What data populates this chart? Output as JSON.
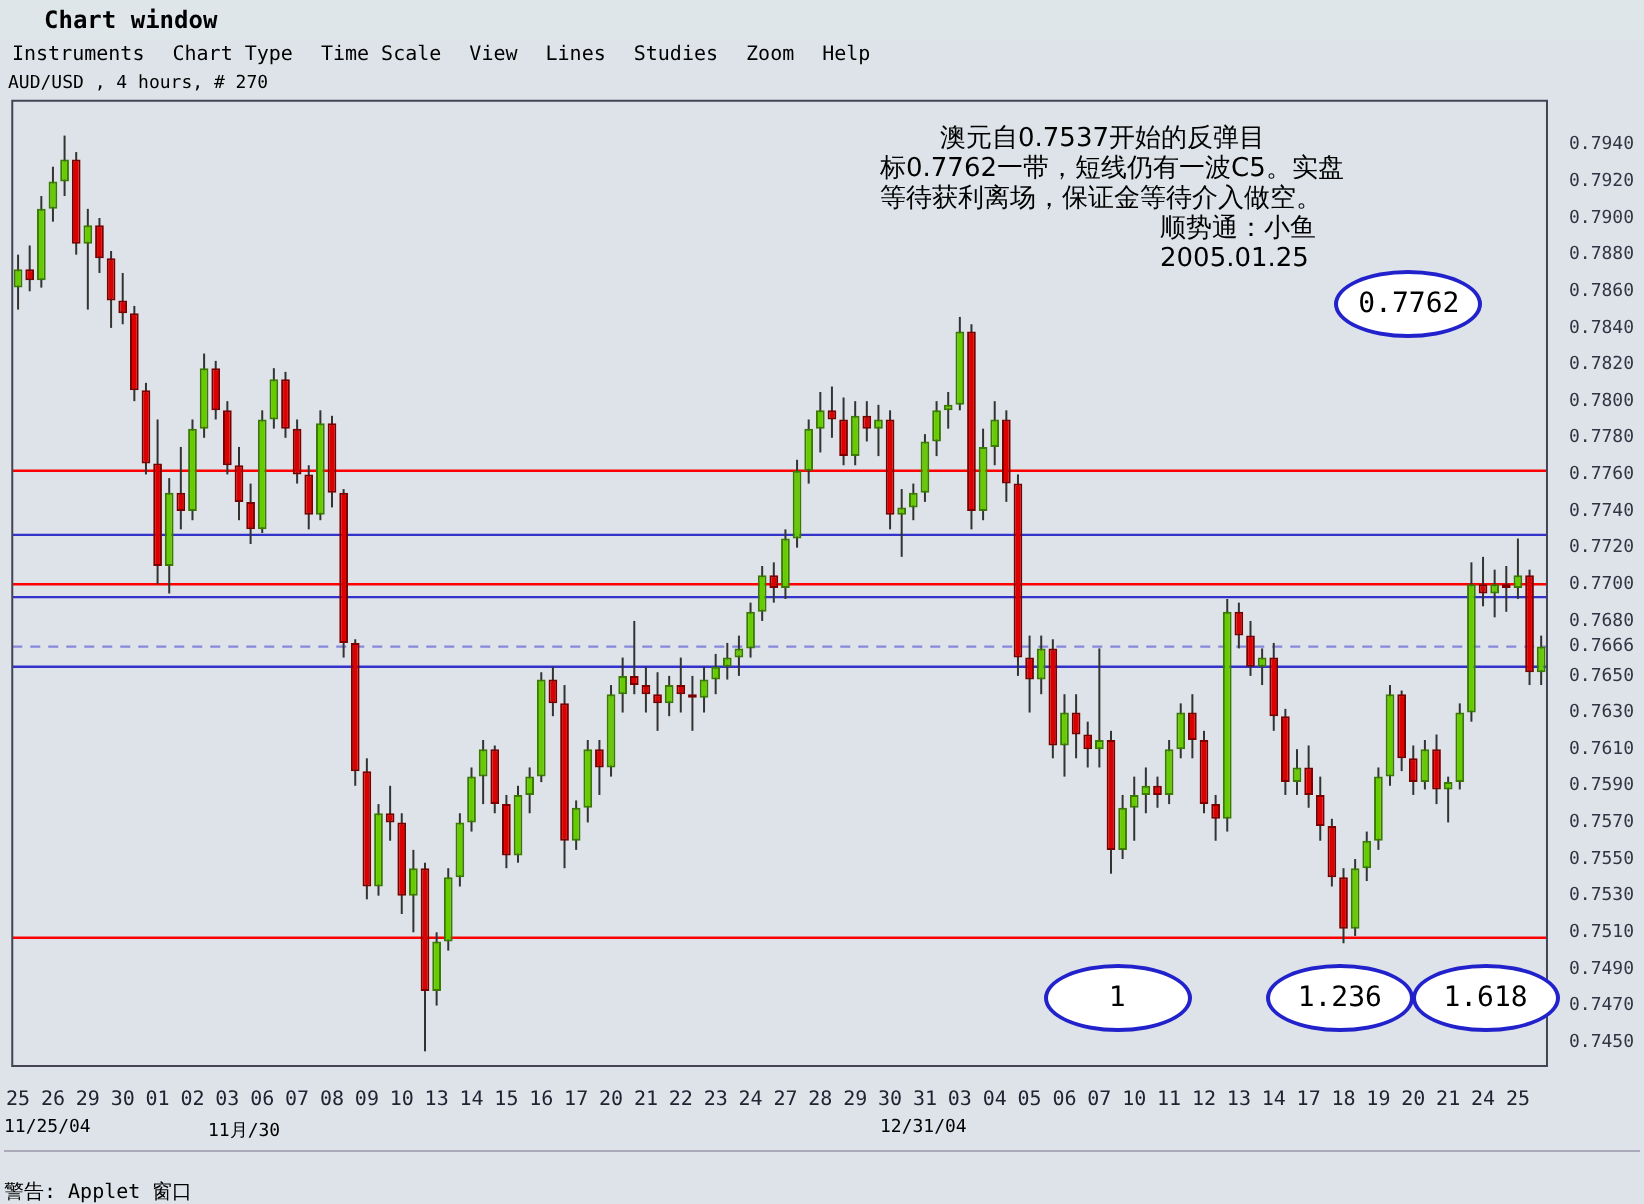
{
  "chart_data": {
    "type": "candlestick",
    "title": "Chart window",
    "subtitle": "AUD/USD , 4 hours, # 270",
    "categories": [
      "25",
      null,
      null,
      "26",
      null,
      null,
      "29",
      null,
      null,
      "30",
      null,
      null,
      "01",
      null,
      null,
      "02",
      null,
      null,
      "03",
      null,
      null,
      "06",
      null,
      null,
      "07",
      null,
      null,
      "08",
      null,
      null,
      "09",
      null,
      null,
      "10",
      null,
      null,
      "13",
      null,
      null,
      "14",
      null,
      null,
      "15",
      null,
      null,
      "16",
      null,
      null,
      "17",
      null,
      null,
      "20",
      null,
      null,
      "21",
      null,
      null,
      "22",
      null,
      null,
      "23",
      null,
      null,
      "24",
      null,
      null,
      "27",
      null,
      null,
      "28",
      null,
      null,
      "29",
      null,
      null,
      "30",
      null,
      null,
      "31",
      null,
      null,
      "03",
      null,
      null,
      "04",
      null,
      null,
      "05",
      null,
      null,
      "06",
      null,
      null,
      "07",
      null,
      null,
      "10",
      null,
      null,
      "11",
      null,
      null,
      "12",
      null,
      null,
      "13",
      null,
      null,
      "14",
      null,
      null,
      "17",
      null,
      null,
      "18",
      null,
      null,
      "19",
      null,
      null,
      "20",
      null,
      null,
      "21",
      null,
      null,
      "24",
      null,
      null,
      "25",
      null,
      null
    ],
    "ohlc": [
      [
        0.7862,
        0.788,
        0.785,
        0.7872
      ],
      [
        0.7872,
        0.7885,
        0.786,
        0.7866
      ],
      [
        0.7866,
        0.7912,
        0.7862,
        0.7905
      ],
      [
        0.7905,
        0.7928,
        0.7898,
        0.792
      ],
      [
        0.792,
        0.7945,
        0.7912,
        0.7932
      ],
      [
        0.7932,
        0.7936,
        0.788,
        0.7886
      ],
      [
        0.7886,
        0.7905,
        0.785,
        0.7896
      ],
      [
        0.7896,
        0.79,
        0.787,
        0.7878
      ],
      [
        0.7878,
        0.7882,
        0.784,
        0.7855
      ],
      [
        0.7855,
        0.787,
        0.7842,
        0.7848
      ],
      [
        0.7848,
        0.7852,
        0.78,
        0.7806
      ],
      [
        0.7806,
        0.781,
        0.776,
        0.7766
      ],
      [
        0.7766,
        0.779,
        0.77,
        0.771
      ],
      [
        0.771,
        0.7758,
        0.7695,
        0.775
      ],
      [
        0.775,
        0.7775,
        0.773,
        0.774
      ],
      [
        0.774,
        0.779,
        0.7735,
        0.7785
      ],
      [
        0.7785,
        0.7826,
        0.778,
        0.7818
      ],
      [
        0.7818,
        0.7822,
        0.779,
        0.7795
      ],
      [
        0.7795,
        0.78,
        0.776,
        0.7765
      ],
      [
        0.7765,
        0.7775,
        0.7735,
        0.7745
      ],
      [
        0.7745,
        0.7755,
        0.7722,
        0.773
      ],
      [
        0.773,
        0.7795,
        0.7728,
        0.779
      ],
      [
        0.779,
        0.7818,
        0.7785,
        0.7812
      ],
      [
        0.7812,
        0.7816,
        0.778,
        0.7785
      ],
      [
        0.7785,
        0.779,
        0.7755,
        0.776
      ],
      [
        0.776,
        0.7765,
        0.773,
        0.7738
      ],
      [
        0.7738,
        0.7795,
        0.7735,
        0.7788
      ],
      [
        0.7788,
        0.7792,
        0.7742,
        0.775
      ],
      [
        0.775,
        0.7752,
        0.766,
        0.7668
      ],
      [
        0.7668,
        0.767,
        0.759,
        0.7598
      ],
      [
        0.7598,
        0.7605,
        0.7528,
        0.7535
      ],
      [
        0.7535,
        0.758,
        0.753,
        0.7575
      ],
      [
        0.7575,
        0.759,
        0.756,
        0.757
      ],
      [
        0.757,
        0.7575,
        0.752,
        0.753
      ],
      [
        0.753,
        0.7555,
        0.751,
        0.7545
      ],
      [
        0.7545,
        0.7548,
        0.7445,
        0.7478
      ],
      [
        0.7478,
        0.751,
        0.747,
        0.7505
      ],
      [
        0.7505,
        0.7545,
        0.75,
        0.754
      ],
      [
        0.754,
        0.7575,
        0.7535,
        0.757
      ],
      [
        0.757,
        0.76,
        0.7565,
        0.7595
      ],
      [
        0.7595,
        0.7615,
        0.758,
        0.761
      ],
      [
        0.761,
        0.7612,
        0.7575,
        0.758
      ],
      [
        0.758,
        0.7585,
        0.7545,
        0.7552
      ],
      [
        0.7552,
        0.759,
        0.7548,
        0.7585
      ],
      [
        0.7585,
        0.76,
        0.7575,
        0.7595
      ],
      [
        0.7595,
        0.7652,
        0.7592,
        0.7648
      ],
      [
        0.7648,
        0.7655,
        0.7628,
        0.7635
      ],
      [
        0.7635,
        0.7645,
        0.7545,
        0.756
      ],
      [
        0.756,
        0.7582,
        0.7555,
        0.7578
      ],
      [
        0.7578,
        0.7615,
        0.757,
        0.761
      ],
      [
        0.761,
        0.7615,
        0.7585,
        0.76
      ],
      [
        0.76,
        0.7645,
        0.7595,
        0.764
      ],
      [
        0.764,
        0.766,
        0.763,
        0.765
      ],
      [
        0.765,
        0.768,
        0.764,
        0.7645
      ],
      [
        0.7645,
        0.7655,
        0.763,
        0.764
      ],
      [
        0.764,
        0.7652,
        0.762,
        0.7635
      ],
      [
        0.7635,
        0.765,
        0.7628,
        0.7645
      ],
      [
        0.7645,
        0.766,
        0.763,
        0.764
      ],
      [
        0.764,
        0.765,
        0.762,
        0.7638
      ],
      [
        0.7638,
        0.7655,
        0.763,
        0.7648
      ],
      [
        0.7648,
        0.7662,
        0.764,
        0.7655
      ],
      [
        0.7655,
        0.7668,
        0.7648,
        0.766
      ],
      [
        0.766,
        0.7672,
        0.765,
        0.7665
      ],
      [
        0.7665,
        0.769,
        0.766,
        0.7685
      ],
      [
        0.7685,
        0.771,
        0.768,
        0.7705
      ],
      [
        0.7705,
        0.7712,
        0.769,
        0.7698
      ],
      [
        0.7698,
        0.773,
        0.7692,
        0.7725
      ],
      [
        0.7725,
        0.7768,
        0.772,
        0.7762
      ],
      [
        0.7762,
        0.779,
        0.7755,
        0.7785
      ],
      [
        0.7785,
        0.7805,
        0.7772,
        0.7795
      ],
      [
        0.7795,
        0.7808,
        0.778,
        0.779
      ],
      [
        0.779,
        0.7802,
        0.7765,
        0.777
      ],
      [
        0.777,
        0.78,
        0.7765,
        0.7792
      ],
      [
        0.7792,
        0.78,
        0.7778,
        0.7785
      ],
      [
        0.7785,
        0.7798,
        0.777,
        0.779
      ],
      [
        0.779,
        0.7795,
        0.773,
        0.7738
      ],
      [
        0.7738,
        0.7752,
        0.7715,
        0.7742
      ],
      [
        0.7742,
        0.7755,
        0.7735,
        0.775
      ],
      [
        0.775,
        0.7782,
        0.7745,
        0.7778
      ],
      [
        0.7778,
        0.78,
        0.777,
        0.7795
      ],
      [
        0.7795,
        0.7805,
        0.7785,
        0.7798
      ],
      [
        0.7798,
        0.7846,
        0.7795,
        0.7838
      ],
      [
        0.7838,
        0.7842,
        0.773,
        0.774
      ],
      [
        0.774,
        0.7785,
        0.7735,
        0.7775
      ],
      [
        0.7775,
        0.78,
        0.7765,
        0.779
      ],
      [
        0.779,
        0.7795,
        0.7745,
        0.7755
      ],
      [
        0.7755,
        0.776,
        0.765,
        0.766
      ],
      [
        0.766,
        0.7672,
        0.763,
        0.7648
      ],
      [
        0.7648,
        0.7672,
        0.764,
        0.7665
      ],
      [
        0.7665,
        0.767,
        0.7605,
        0.7612
      ],
      [
        0.7612,
        0.764,
        0.7595,
        0.763
      ],
      [
        0.763,
        0.764,
        0.7605,
        0.7618
      ],
      [
        0.7618,
        0.7625,
        0.76,
        0.761
      ],
      [
        0.761,
        0.7665,
        0.76,
        0.7615
      ],
      [
        0.7615,
        0.762,
        0.7542,
        0.7555
      ],
      [
        0.7555,
        0.7585,
        0.755,
        0.7578
      ],
      [
        0.7578,
        0.7595,
        0.756,
        0.7585
      ],
      [
        0.7585,
        0.76,
        0.7575,
        0.759
      ],
      [
        0.759,
        0.7595,
        0.7578,
        0.7585
      ],
      [
        0.7585,
        0.7615,
        0.758,
        0.761
      ],
      [
        0.761,
        0.7635,
        0.7605,
        0.763
      ],
      [
        0.763,
        0.764,
        0.7605,
        0.7615
      ],
      [
        0.7615,
        0.762,
        0.7575,
        0.758
      ],
      [
        0.758,
        0.7585,
        0.756,
        0.7572
      ],
      [
        0.7572,
        0.7692,
        0.7565,
        0.7685
      ],
      [
        0.7685,
        0.769,
        0.7665,
        0.7672
      ],
      [
        0.7672,
        0.768,
        0.765,
        0.7655
      ],
      [
        0.7655,
        0.7665,
        0.7645,
        0.766
      ],
      [
        0.766,
        0.7668,
        0.762,
        0.7628
      ],
      [
        0.7628,
        0.7632,
        0.7585,
        0.7592
      ],
      [
        0.7592,
        0.761,
        0.7585,
        0.76
      ],
      [
        0.76,
        0.7612,
        0.7578,
        0.7585
      ],
      [
        0.7585,
        0.7595,
        0.756,
        0.7568
      ],
      [
        0.7568,
        0.7572,
        0.7535,
        0.754
      ],
      [
        0.754,
        0.7545,
        0.7504,
        0.7512
      ],
      [
        0.7512,
        0.755,
        0.7508,
        0.7545
      ],
      [
        0.7545,
        0.7565,
        0.7538,
        0.756
      ],
      [
        0.756,
        0.76,
        0.7555,
        0.7595
      ],
      [
        0.7595,
        0.7645,
        0.759,
        0.764
      ],
      [
        0.764,
        0.7642,
        0.7598,
        0.7605
      ],
      [
        0.7605,
        0.7612,
        0.7585,
        0.7592
      ],
      [
        0.7592,
        0.7615,
        0.7588,
        0.761
      ],
      [
        0.761,
        0.7618,
        0.758,
        0.7588
      ],
      [
        0.7588,
        0.7595,
        0.757,
        0.7592
      ],
      [
        0.7592,
        0.7635,
        0.7588,
        0.763
      ],
      [
        0.763,
        0.7712,
        0.7625,
        0.77
      ],
      [
        0.77,
        0.7715,
        0.7688,
        0.7695
      ],
      [
        0.7695,
        0.7708,
        0.7682,
        0.77
      ],
      [
        0.77,
        0.771,
        0.7685,
        0.7698
      ],
      [
        0.7698,
        0.7725,
        0.7692,
        0.7705
      ],
      [
        0.7705,
        0.7708,
        0.7645,
        0.7652
      ],
      [
        0.7652,
        0.7672,
        0.7645,
        0.7666
      ]
    ],
    "ylim": [
      0.7437,
      0.7964
    ],
    "yticks": [
      {
        "value": 0.745,
        "label": "0.7450"
      },
      {
        "value": 0.747,
        "label": "0.7470"
      },
      {
        "value": 0.749,
        "label": "0.7490"
      },
      {
        "value": 0.751,
        "label": "0.7510"
      },
      {
        "value": 0.753,
        "label": "0.7530"
      },
      {
        "value": 0.755,
        "label": "0.7550"
      },
      {
        "value": 0.757,
        "label": "0.7570"
      },
      {
        "value": 0.759,
        "label": "0.7590"
      },
      {
        "value": 0.761,
        "label": "0.7610"
      },
      {
        "value": 0.763,
        "label": "0.7630"
      },
      {
        "value": 0.765,
        "label": "0.7650"
      },
      {
        "value": 0.7666,
        "label": "0.7666"
      },
      {
        "value": 0.768,
        "label": "0.7680"
      },
      {
        "value": 0.77,
        "label": "0.7700"
      },
      {
        "value": 0.772,
        "label": "0.7720"
      },
      {
        "value": 0.774,
        "label": "0.7740"
      },
      {
        "value": 0.776,
        "label": "0.7760"
      },
      {
        "value": 0.778,
        "label": "0.7780"
      },
      {
        "value": 0.78,
        "label": "0.7800"
      },
      {
        "value": 0.782,
        "label": "0.7820"
      },
      {
        "value": 0.784,
        "label": "0.7840"
      },
      {
        "value": 0.786,
        "label": "0.7860"
      },
      {
        "value": 0.788,
        "label": "0.7880"
      },
      {
        "value": 0.79,
        "label": "0.7900"
      },
      {
        "value": 0.792,
        "label": "0.7920"
      },
      {
        "value": 0.794,
        "label": "0.7940"
      }
    ],
    "ref_lines": [
      {
        "axis": "y",
        "value": 0.7762,
        "color": "#ff0000"
      },
      {
        "axis": "y",
        "value": 0.7727,
        "color": "#3333cc"
      },
      {
        "axis": "y",
        "value": 0.77,
        "color": "#ff0000"
      },
      {
        "axis": "y",
        "value": 0.7693,
        "color": "#3333cc"
      },
      {
        "axis": "y",
        "value": 0.7666,
        "color": "#8888dd",
        "line_style": "dashed"
      },
      {
        "axis": "y",
        "value": 0.7655,
        "color": "#3333cc"
      },
      {
        "axis": "y",
        "value": 0.7507,
        "color": "#ff0000"
      }
    ],
    "annotations": [
      "Instruments",
      "Chart Type",
      "Time Scale",
      "View",
      "Lines",
      "Studies",
      "Zoom",
      "Help",
      "澳元自0.7537开始的反弹目",
      "标0.7762一带，短线仍有一波C5。实盘",
      "等待获利离场，保证金等待介入做空。",
      "顺势通：小鱼",
      "2005.01.25",
      "0.7762",
      "1",
      "1.236",
      "1.618",
      "11/25/04",
      "11月/30",
      "12/31/04",
      "警告: Applet 窗口"
    ],
    "grid": false,
    "legend": false
  }
}
